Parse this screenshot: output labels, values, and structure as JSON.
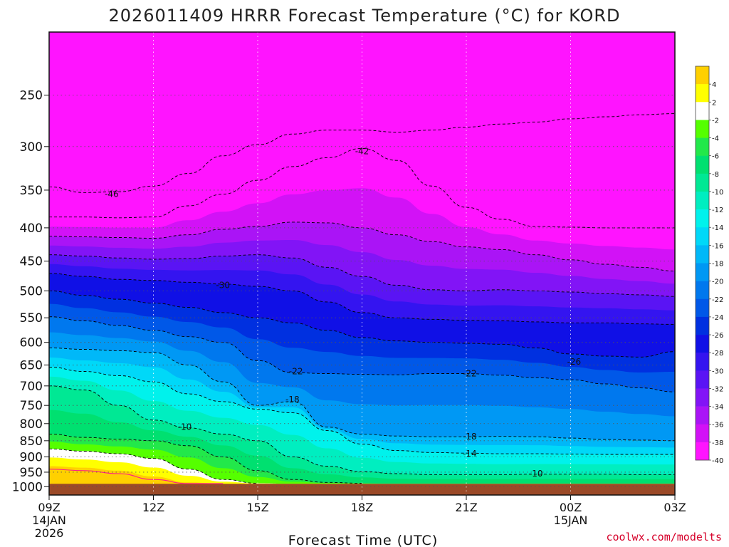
{
  "chart_data": {
    "type": "heatmap",
    "title": "2026011409 HRRR Forecast Temperature (°C) for KORD",
    "xlabel": "Forecast Time (UTC)",
    "ylabel": "",
    "credit": "coolwx.com/modelts",
    "x_ticks": [
      {
        "label": "09Z",
        "sub1": "14JAN",
        "sub2": "2026",
        "hour": 0
      },
      {
        "label": "12Z",
        "sub1": "",
        "sub2": "",
        "hour": 3
      },
      {
        "label": "15Z",
        "sub1": "",
        "sub2": "",
        "hour": 6
      },
      {
        "label": "18Z",
        "sub1": "",
        "sub2": "",
        "hour": 9
      },
      {
        "label": "21Z",
        "sub1": "",
        "sub2": "",
        "hour": 12
      },
      {
        "label": "00Z",
        "sub1": "15JAN",
        "sub2": "",
        "hour": 15
      },
      {
        "label": "03Z",
        "sub1": "",
        "sub2": "",
        "hour": 18
      }
    ],
    "xlim": [
      0,
      18
    ],
    "y_ticks": [
      250,
      300,
      350,
      400,
      450,
      500,
      550,
      600,
      650,
      700,
      750,
      800,
      850,
      900,
      950,
      1000
    ],
    "ylim_hPa": [
      200,
      1030
    ],
    "y_scale": "log-pressure",
    "ground_level_hPa": 990,
    "grid": true,
    "colorbar": {
      "placement": "right",
      "ticks": [
        "4",
        "2",
        "-2",
        "-4",
        "-6",
        "-8",
        "-10",
        "-12",
        "-14",
        "-16",
        "-18",
        "-20",
        "-22",
        "-24",
        "-26",
        "-28",
        "-30",
        "-32",
        "-34",
        "-36",
        "-38",
        "-40"
      ],
      "bin_colors": [
        "#ffd000",
        "#ffff00",
        "#ffffff",
        "#55ff00",
        "#22e84a",
        "#00e070",
        "#00e894",
        "#00eec0",
        "#00f2ec",
        "#00d8f8",
        "#00b8f8",
        "#0098f4",
        "#0078ee",
        "#0058e8",
        "#0030e0",
        "#1010e6",
        "#3414f0",
        "#5a14f4",
        "#8214f6",
        "#aa14f6",
        "#d212f6",
        "#ff14ff"
      ]
    },
    "ground_color": "#9b4a28",
    "contour_labels": [
      {
        "value": -46,
        "hour": 1.8,
        "hPa": 355
      },
      {
        "value": -42,
        "hour": 9.0,
        "hPa": 305
      },
      {
        "value": -30,
        "hour": 5.0,
        "hPa": 490
      },
      {
        "value": -26,
        "hour": 15.1,
        "hPa": 643
      },
      {
        "value": -22,
        "hour": 7.1,
        "hPa": 665
      },
      {
        "value": -22,
        "hour": 12.1,
        "hPa": 670
      },
      {
        "value": -18,
        "hour": 7.0,
        "hPa": 735
      },
      {
        "value": -18,
        "hour": 12.1,
        "hPa": 838
      },
      {
        "value": -14,
        "hour": 12.1,
        "hPa": 890
      },
      {
        "value": -10,
        "hour": 3.9,
        "hPa": 810
      },
      {
        "value": -10,
        "hour": 14.0,
        "hPa": 955
      }
    ],
    "contours_hPa_by_hour": {
      "hours": [
        0,
        1,
        2,
        3,
        4,
        5,
        6,
        7,
        8,
        9,
        10,
        11,
        12,
        13,
        14,
        15,
        16,
        17,
        18
      ],
      "m46": [
        346,
        353,
        352,
        345,
        330,
        310,
        298,
        287,
        283,
        283,
        285,
        283,
        280,
        277,
        275,
        272,
        270,
        268,
        267
      ],
      "m42": [
        385,
        385,
        386,
        385,
        370,
        355,
        338,
        322,
        312,
        302,
        315,
        345,
        372,
        388,
        398,
        399,
        400,
        400,
        400
      ],
      "m38": [
        412,
        413,
        414,
        415,
        410,
        402,
        398,
        392,
        393,
        400,
        410,
        420,
        428,
        432,
        440,
        448,
        455,
        460,
        466
      ],
      "m34": [
        440,
        442,
        445,
        447,
        446,
        442,
        440,
        445,
        460,
        475,
        490,
        498,
        500,
        498,
        500,
        502,
        505,
        507,
        510
      ],
      "m30": [
        470,
        475,
        480,
        482,
        485,
        488,
        492,
        500,
        520,
        540,
        550,
        553,
        555,
        556,
        558,
        560,
        560,
        562,
        563
      ],
      "m26": [
        500,
        508,
        515,
        522,
        530,
        540,
        550,
        560,
        575,
        590,
        597,
        600,
        602,
        604,
        612,
        625,
        630,
        632,
        620
      ],
      "m22": [
        548,
        556,
        565,
        575,
        588,
        600,
        640,
        668,
        670,
        672,
        673,
        670,
        670,
        674,
        680,
        685,
        695,
        705,
        715
      ],
      "m18": [
        612,
        615,
        618,
        622,
        650,
        690,
        750,
        740,
        810,
        830,
        836,
        838,
        838,
        837,
        838,
        842,
        846,
        848,
        850
      ],
      "m14": [
        655,
        665,
        675,
        690,
        720,
        740,
        760,
        770,
        820,
        860,
        880,
        886,
        888,
        890,
        890,
        891,
        892,
        892,
        892
      ],
      "m10": [
        700,
        710,
        750,
        790,
        812,
        830,
        850,
        900,
        930,
        948,
        955,
        958,
        958,
        958,
        957,
        957,
        957,
        958,
        958
      ],
      "m6": [
        830,
        840,
        845,
        850,
        865,
        900,
        945,
        975,
        985,
        988,
        990,
        990,
        990,
        990,
        990,
        990,
        990,
        990,
        990
      ],
      "m2": [
        875,
        882,
        890,
        905,
        940,
        975,
        988,
        990,
        990,
        990,
        990,
        990,
        990,
        990,
        990,
        990,
        990,
        990,
        990
      ],
      "p2": [
        930,
        935,
        945,
        965,
        985,
        990,
        990,
        990,
        990,
        990,
        990,
        990,
        990,
        990,
        990,
        990,
        990,
        990,
        990
      ]
    }
  }
}
